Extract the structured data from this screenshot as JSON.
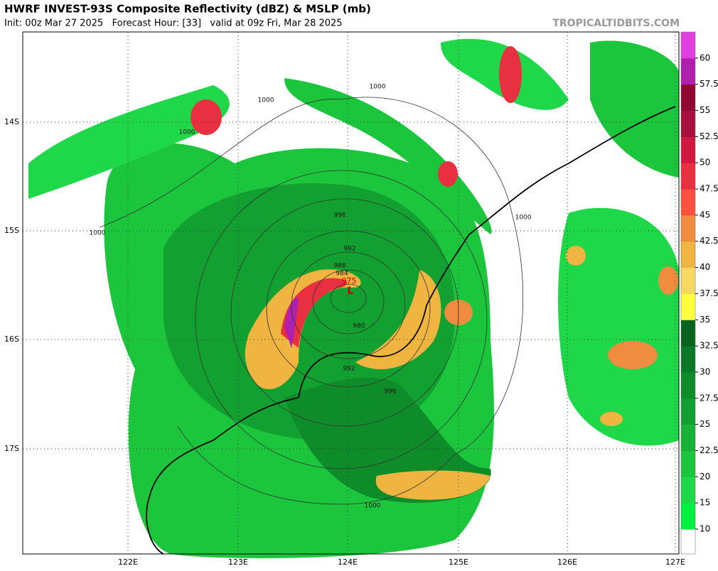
{
  "header": {
    "title": "HWRF INVEST-93S Composite Reflectivity (dBZ) & MSLP (mb)",
    "subtitle": "Init: 00z Mar 27 2025   Forecast Hour: [33]   valid at 09z Fri, Mar 28 2025",
    "credit": "TROPICALTIDBITS.COM"
  },
  "map": {
    "lat_labels": [
      "14S",
      "15S",
      "16S",
      "17S"
    ],
    "lon_labels": [
      "122E",
      "123E",
      "124E",
      "125E",
      "126E",
      "127E"
    ],
    "contour_labels": [
      "1000",
      "1000",
      "1000",
      "1000",
      "1000",
      "996",
      "992",
      "988",
      "984",
      "980",
      "992",
      "996",
      "1000"
    ],
    "low_label": "L",
    "low_pressure": "975"
  },
  "colorbar": {
    "labels": [
      10,
      15,
      20,
      22.5,
      25,
      27.5,
      30,
      32.5,
      35,
      37.5,
      40,
      42.5,
      45,
      47.5,
      50,
      52.5,
      55,
      57.5,
      60
    ],
    "colors": [
      "#00f040",
      "#1ed84a",
      "#1cc63c",
      "#18b236",
      "#12a030",
      "#0e8c2a",
      "#0a7824",
      "#06641e",
      "#ffff40",
      "#f8d860",
      "#f0b440",
      "#f08c40",
      "#ff5040",
      "#e83040",
      "#d01840",
      "#a81040",
      "#900830",
      "#b020b0",
      "#e040e0"
    ]
  }
}
